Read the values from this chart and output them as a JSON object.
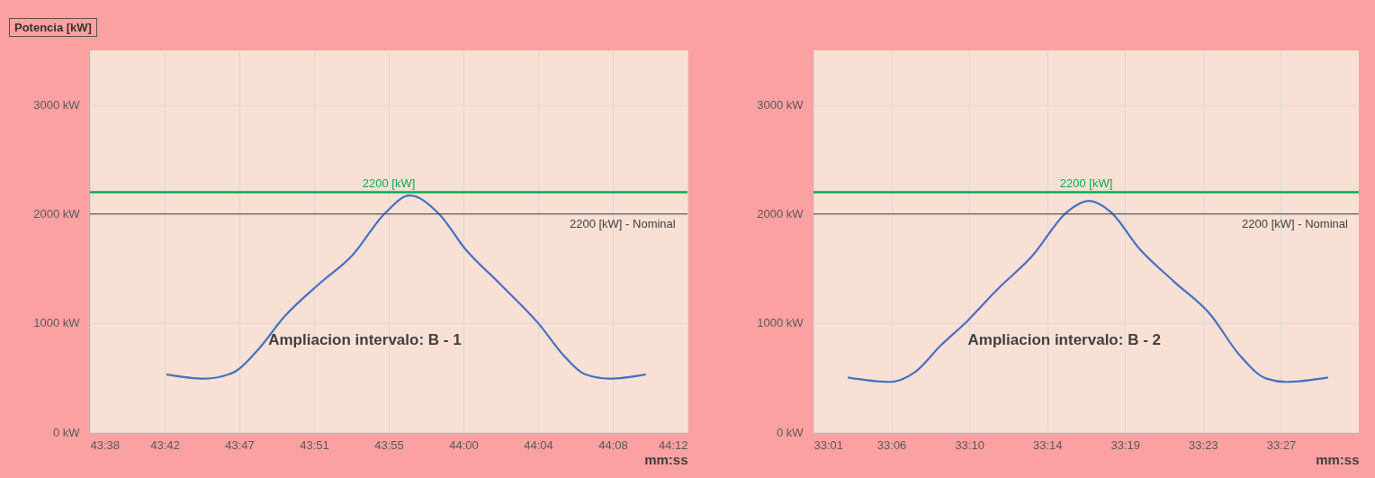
{
  "chart_data": [
    {
      "type": "line",
      "title": "Potencia [kW]",
      "xlabel": "mm:ss",
      "x": [
        2622.4,
        2624.6,
        2626.3,
        2627.7,
        2629.2,
        2631.2,
        2633.1,
        2635.0,
        2636.4,
        2638.1,
        2639.6,
        2641.6,
        2643.8,
        2645.4,
        2646.5,
        2647.9,
        2650.0
      ],
      "series": [
        {
          "color": "#4472c4",
          "values": [
            530,
            490,
            550,
            760,
            1060,
            1360,
            1620,
            2010,
            2170,
            2000,
            1680,
            1360,
            1000,
            680,
            530,
            490,
            530
          ]
        }
      ],
      "xlim": [
        2618,
        2652.4
      ],
      "xticks": [
        {
          "value": 2618,
          "label": "43:38"
        },
        {
          "value": 2622.3,
          "label": "43:42"
        },
        {
          "value": 2626.6,
          "label": "43:47"
        },
        {
          "value": 2630.9,
          "label": "43:51"
        },
        {
          "value": 2635.2,
          "label": "43:55"
        },
        {
          "value": 2639.5,
          "label": "44:00"
        },
        {
          "value": 2643.8,
          "label": "44:04"
        },
        {
          "value": 2648.1,
          "label": "44:08"
        },
        {
          "value": 2652.4,
          "label": "44:12"
        }
      ],
      "ylim": [
        0,
        3500
      ],
      "yticks": [
        {
          "value": 0,
          "label": "0 kW"
        },
        {
          "value": 1000,
          "label": "1000 kW"
        },
        {
          "value": 2000,
          "label": "2000 kW"
        },
        {
          "value": 3000,
          "label": "3000 kW"
        }
      ],
      "ref_lines": [
        {
          "axis": "y",
          "value": 2200,
          "label": "2200 [kW]",
          "color": "#00b050"
        },
        {
          "axis": "y",
          "value": 2000,
          "label": "2200 [kW] - Nominal",
          "color": "#404040"
        }
      ],
      "annotations": [
        "Ampliacion intervalo: B - 1"
      ],
      "grid": true
    },
    {
      "type": "line",
      "xlabel": "mm:ss",
      "x": [
        1983.3,
        1985.6,
        1987.0,
        1988.4,
        1989.9,
        1991.5,
        1993.5,
        1995.4,
        1996.6,
        1997.8,
        1999.4,
        2001.3,
        2003.3,
        2004.9,
        2006.4,
        2007.5,
        2009.8
      ],
      "series": [
        {
          "color": "#4472c4",
          "values": [
            500,
            460,
            550,
            790,
            1020,
            1300,
            1620,
            2020,
            2120,
            2020,
            1680,
            1380,
            1080,
            710,
            490,
            460,
            500
          ]
        }
      ],
      "xlim": [
        1981.4,
        2011.5
      ],
      "xticks": [
        {
          "value": 1981.4,
          "label": "33:01"
        },
        {
          "value": 1985.7,
          "label": "33:06"
        },
        {
          "value": 1990.0,
          "label": "33:10"
        },
        {
          "value": 1994.3,
          "label": "33:14"
        },
        {
          "value": 1998.6,
          "label": "33:19"
        },
        {
          "value": 2002.9,
          "label": "33:23"
        },
        {
          "value": 2007.2,
          "label": "33:27"
        }
      ],
      "ylim": [
        0,
        3500
      ],
      "yticks": [
        {
          "value": 0,
          "label": "0 kW"
        },
        {
          "value": 1000,
          "label": "1000 kW"
        },
        {
          "value": 2000,
          "label": "2000 kW"
        },
        {
          "value": 3000,
          "label": "3000 kW"
        }
      ],
      "ref_lines": [
        {
          "axis": "y",
          "value": 2200,
          "label": "2200 [kW]",
          "color": "#00b050"
        },
        {
          "axis": "y",
          "value": 2000,
          "label": "2200 [kW] - Nominal",
          "color": "#404040"
        }
      ],
      "annotations": [
        "Ampliacion intervalo: B - 2"
      ],
      "grid": true
    }
  ]
}
